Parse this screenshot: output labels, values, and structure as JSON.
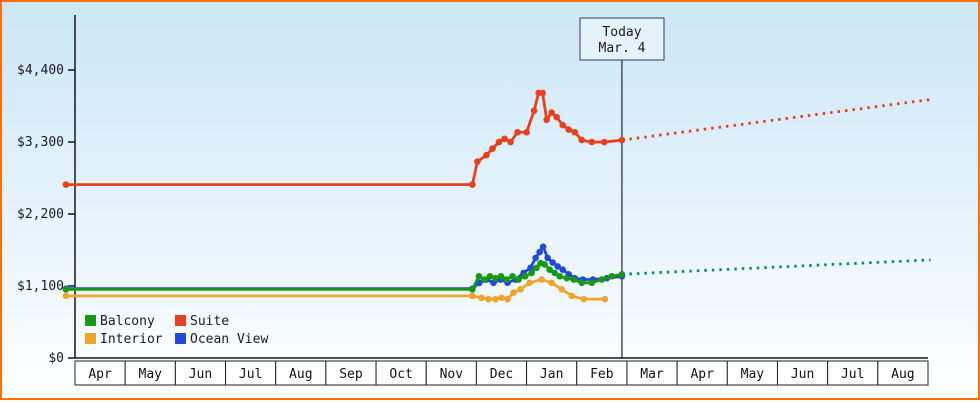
{
  "y_axis": {
    "labels": [
      "$0",
      "$1,100",
      "$2,200",
      "$3,300",
      "$4,400"
    ]
  },
  "today_box": {
    "line1": "Today",
    "line2": "Mar. 4"
  },
  "legend": {
    "items": [
      {
        "label": "Balcony",
        "color": "#169a16"
      },
      {
        "label": "Suite",
        "color": "#e8401c"
      },
      {
        "label": "Interior",
        "color": "#efa42a"
      },
      {
        "label": "Ocean View",
        "color": "#2447dd"
      }
    ]
  },
  "chart_data": {
    "type": "line",
    "x_months": [
      "Apr",
      "May",
      "Jun",
      "Jul",
      "Aug",
      "Sep",
      "Oct",
      "Nov",
      "Dec",
      "Jan",
      "Feb",
      "Mar",
      "Apr",
      "May",
      "Jun",
      "Jul",
      "Aug"
    ],
    "y_ticks": [
      0,
      1100,
      2200,
      3300,
      4400
    ],
    "y_tick_labels": [
      "$0",
      "$1,100",
      "$2,200",
      "$3,300",
      "$4,400"
    ],
    "ylim": [
      0,
      5250
    ],
    "grid": false,
    "legend_position": "bottom-left-inside",
    "today": {
      "x": 10.9,
      "label_line1": "Today",
      "label_line2": "Mar. 4"
    },
    "series": [
      {
        "name": "Interior",
        "color": "#efa42a",
        "points": [
          [
            -0.18,
            949
          ],
          [
            7.92,
            949
          ],
          [
            8.1,
            919
          ],
          [
            8.24,
            899
          ],
          [
            8.38,
            899
          ],
          [
            8.5,
            919
          ],
          [
            8.62,
            899
          ],
          [
            8.74,
            999
          ],
          [
            8.88,
            1049
          ],
          [
            9.06,
            1149
          ],
          [
            9.3,
            1199
          ],
          [
            9.5,
            1149
          ],
          [
            9.7,
            1049
          ],
          [
            9.9,
            949
          ],
          [
            10.14,
            899
          ],
          [
            10.56,
            899
          ]
        ]
      },
      {
        "name": "Ocean View",
        "color": "#2447dd",
        "points": [
          [
            -0.18,
            1059
          ],
          [
            7.92,
            1059
          ],
          [
            8.06,
            1149
          ],
          [
            8.2,
            1199
          ],
          [
            8.34,
            1149
          ],
          [
            8.48,
            1199
          ],
          [
            8.62,
            1149
          ],
          [
            8.78,
            1199
          ],
          [
            8.94,
            1299
          ],
          [
            9.08,
            1379
          ],
          [
            9.18,
            1529
          ],
          [
            9.26,
            1619
          ],
          [
            9.33,
            1699
          ],
          [
            9.42,
            1529
          ],
          [
            9.52,
            1459
          ],
          [
            9.62,
            1399
          ],
          [
            9.72,
            1349
          ],
          [
            9.84,
            1279
          ],
          [
            9.96,
            1219
          ],
          [
            10.12,
            1199
          ],
          [
            10.32,
            1199
          ],
          [
            10.6,
            1219
          ],
          [
            10.9,
            1249
          ]
        ]
      },
      {
        "name": "Balcony",
        "color": "#169a16",
        "points": [
          [
            -0.18,
            1049
          ],
          [
            7.92,
            1049
          ],
          [
            8.05,
            1249
          ],
          [
            8.16,
            1199
          ],
          [
            8.27,
            1249
          ],
          [
            8.38,
            1219
          ],
          [
            8.49,
            1249
          ],
          [
            8.6,
            1199
          ],
          [
            8.72,
            1249
          ],
          [
            8.84,
            1199
          ],
          [
            8.97,
            1249
          ],
          [
            9.1,
            1299
          ],
          [
            9.2,
            1379
          ],
          [
            9.28,
            1449
          ],
          [
            9.36,
            1429
          ],
          [
            9.46,
            1349
          ],
          [
            9.56,
            1299
          ],
          [
            9.66,
            1249
          ],
          [
            9.8,
            1219
          ],
          [
            9.94,
            1199
          ],
          [
            10.1,
            1149
          ],
          [
            10.3,
            1149
          ],
          [
            10.5,
            1199
          ],
          [
            10.7,
            1249
          ],
          [
            10.9,
            1279
          ]
        ],
        "projection": [
          [
            10.9,
            1279
          ],
          [
            17.05,
            1499
          ]
        ],
        "projection_color": "#0a8f60"
      },
      {
        "name": "Suite",
        "color": "#e8401c",
        "points": [
          [
            -0.18,
            2649
          ],
          [
            7.92,
            2649
          ],
          [
            8.02,
            2999
          ],
          [
            8.2,
            3099
          ],
          [
            8.32,
            3199
          ],
          [
            8.45,
            3299
          ],
          [
            8.56,
            3349
          ],
          [
            8.68,
            3299
          ],
          [
            8.82,
            3449
          ],
          [
            9.0,
            3449
          ],
          [
            9.15,
            3779
          ],
          [
            9.24,
            4049
          ],
          [
            9.32,
            4049
          ],
          [
            9.4,
            3639
          ],
          [
            9.5,
            3749
          ],
          [
            9.6,
            3679
          ],
          [
            9.72,
            3559
          ],
          [
            9.84,
            3489
          ],
          [
            9.96,
            3449
          ],
          [
            10.1,
            3329
          ],
          [
            10.3,
            3299
          ],
          [
            10.55,
            3299
          ],
          [
            10.9,
            3329
          ]
        ],
        "projection": [
          [
            10.9,
            3329
          ],
          [
            17.05,
            3949
          ]
        ],
        "projection_color": "#e8401c"
      }
    ]
  }
}
